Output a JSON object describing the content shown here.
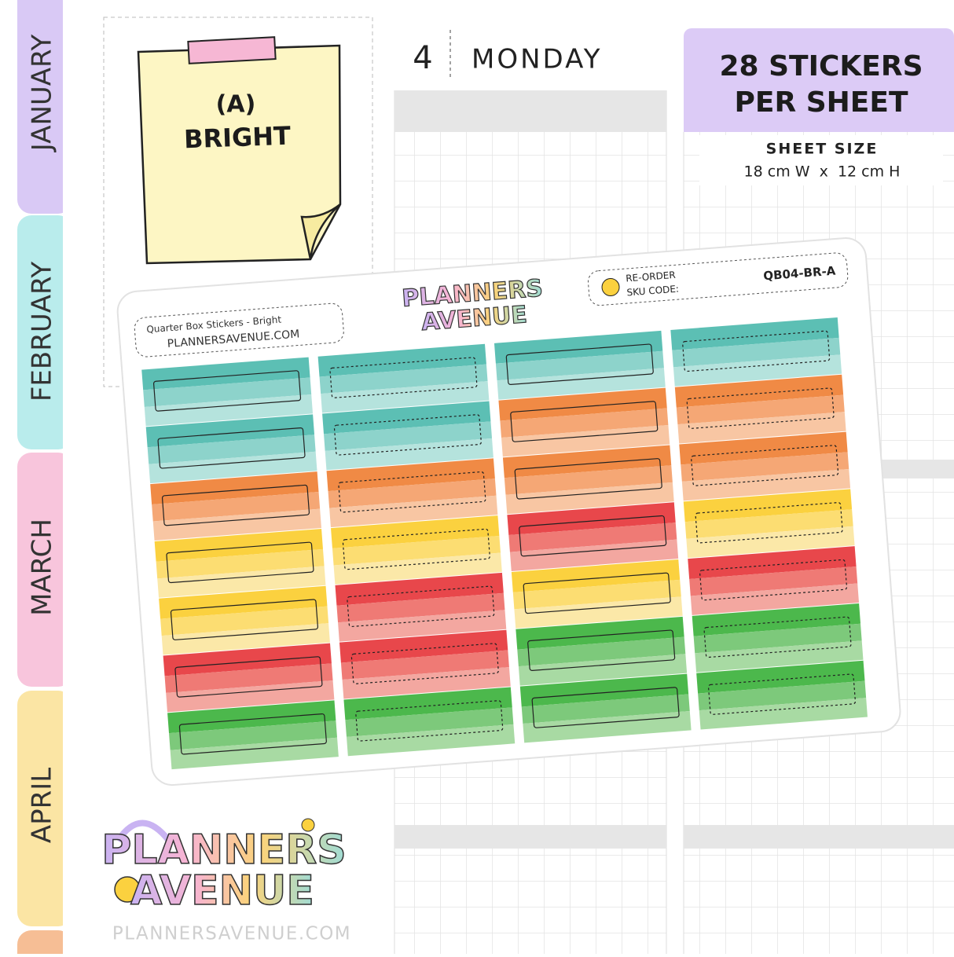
{
  "tabs": [
    "JANUARY",
    "FEBRUARY",
    "MARCH",
    "APRIL"
  ],
  "note": {
    "line1": "(A)",
    "line2": "BRIGHT"
  },
  "planner": {
    "day_number": "4",
    "day_name": "MONDAY"
  },
  "badge": {
    "line1": "28 STICKERS",
    "line2": "PER SHEET"
  },
  "sheet_size": {
    "label": "SHEET SIZE",
    "value": "18 cm W  x  12 cm H"
  },
  "sheet": {
    "product": "Quarter Box Stickers - Bright",
    "website": "PLANNERSAVENUE.COM",
    "logo_line1": "PLANNERS",
    "logo_line2": "AVENUE",
    "reorder": "RE-ORDER",
    "sku_label": "SKU CODE:",
    "sku": "QB04-BR-A"
  },
  "logo": {
    "line1": "PLANNERS",
    "line2": "AVENUE"
  },
  "footer": "PLANNERSAVENUE.COM"
}
